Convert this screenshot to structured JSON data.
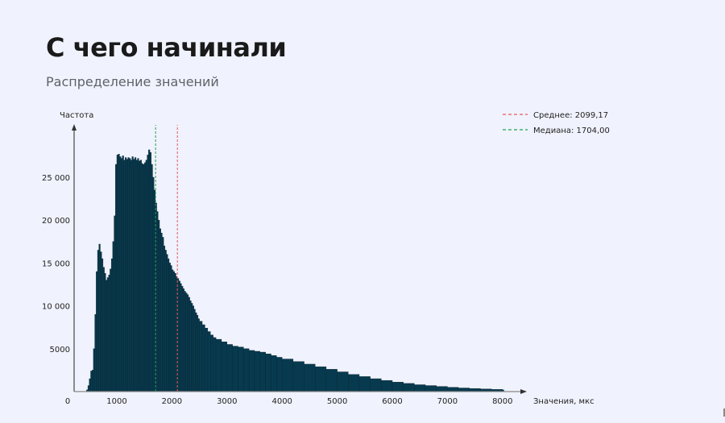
{
  "slide": {
    "title": "С чего начинали",
    "subtitle": "Распределение значений"
  },
  "colors": {
    "background": "#f0f2fd",
    "bar_fill": "#073a4f",
    "bar_edge": "#0b2530",
    "mean_line": "#e8585a",
    "median_line": "#1aa551",
    "axis": "#555555"
  },
  "chart_data": {
    "type": "bar",
    "title": "Распределение значений",
    "xlabel": "Значения, мкс",
    "ylabel": "Частота",
    "xlim": [
      0,
      8000
    ],
    "ylim": [
      0,
      28500
    ],
    "x_ticks": [
      0,
      1000,
      2000,
      3000,
      4000,
      5000,
      6000,
      7000,
      8000
    ],
    "x_tick_labels": [
      "0",
      "1000",
      "2000",
      "3000",
      "4000",
      "5000",
      "6000",
      "7000",
      "8000"
    ],
    "y_ticks": [
      0,
      5000,
      10000,
      15000,
      20000,
      25000
    ],
    "y_tick_labels": [
      "0",
      "5000",
      "10 000",
      "15 000",
      "20 000",
      "25 000"
    ],
    "grid": false,
    "legend_position": "upper right",
    "legend": [
      {
        "label": "Среднее: 2099,17",
        "style": "dashed",
        "color": "#e8585a",
        "x": 2099.17
      },
      {
        "label": "Медиана: 1704,00",
        "style": "dashed",
        "color": "#1aa551",
        "x": 1704.0
      }
    ],
    "bin_width": 25,
    "x": [
      450,
      475,
      500,
      525,
      550,
      575,
      600,
      625,
      650,
      675,
      700,
      725,
      750,
      775,
      800,
      825,
      850,
      875,
      900,
      925,
      950,
      975,
      1000,
      1025,
      1050,
      1075,
      1100,
      1125,
      1150,
      1175,
      1200,
      1225,
      1250,
      1275,
      1300,
      1325,
      1350,
      1375,
      1400,
      1425,
      1450,
      1475,
      1500,
      1525,
      1550,
      1575,
      1600,
      1625,
      1650,
      1675,
      1700,
      1725,
      1750,
      1775,
      1800,
      1825,
      1850,
      1875,
      1900,
      1925,
      1950,
      1975,
      2000,
      2025,
      2050,
      2075,
      2100,
      2125,
      2150,
      2175,
      2200,
      2225,
      2250,
      2275,
      2300,
      2325,
      2350,
      2375,
      2400,
      2425,
      2450,
      2475,
      2500,
      2550,
      2600,
      2650,
      2700,
      2750,
      2800,
      2900,
      3000,
      3100,
      3200,
      3300,
      3400,
      3500,
      3600,
      3700,
      3800,
      3900,
      4000,
      4200,
      4400,
      4600,
      4800,
      5000,
      5200,
      5400,
      5600,
      5800,
      6000,
      6200,
      6400,
      6600,
      6800,
      7000,
      7200,
      7400,
      7600,
      7800,
      8000
    ],
    "values": [
      200,
      700,
      1500,
      2400,
      2500,
      5000,
      9000,
      14000,
      16500,
      17200,
      16300,
      15500,
      14500,
      13800,
      13000,
      13300,
      13600,
      14300,
      15500,
      17500,
      20500,
      26500,
      27600,
      27700,
      27400,
      27200,
      27500,
      27000,
      27300,
      27100,
      27300,
      27200,
      27000,
      27400,
      27100,
      27300,
      27000,
      27200,
      26900,
      27000,
      26600,
      26500,
      26700,
      27000,
      27600,
      28200,
      27900,
      26500,
      25000,
      23500,
      22000,
      21000,
      20000,
      19000,
      18500,
      18000,
      17000,
      16500,
      16000,
      15500,
      15000,
      14700,
      14200,
      14000,
      13800,
      13400,
      13200,
      12900,
      12600,
      12300,
      12000,
      11700,
      11500,
      11300,
      11000,
      10600,
      10300,
      10000,
      9600,
      9200,
      8900,
      8500,
      8200,
      7800,
      7400,
      7000,
      6600,
      6300,
      6100,
      5800,
      5500,
      5300,
      5200,
      5000,
      4800,
      4700,
      4600,
      4400,
      4200,
      4000,
      3800,
      3500,
      3200,
      2900,
      2600,
      2300,
      2000,
      1750,
      1500,
      1300,
      1100,
      950,
      800,
      700,
      600,
      500,
      420,
      360,
      300,
      250,
      200
    ]
  }
}
